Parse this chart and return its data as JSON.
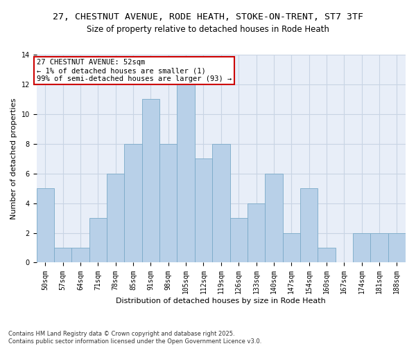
{
  "title_line1": "27, CHESTNUT AVENUE, RODE HEATH, STOKE-ON-TRENT, ST7 3TF",
  "title_line2": "Size of property relative to detached houses in Rode Heath",
  "xlabel": "Distribution of detached houses by size in Rode Heath",
  "ylabel": "Number of detached properties",
  "categories": [
    "50sqm",
    "57sqm",
    "64sqm",
    "71sqm",
    "78sqm",
    "85sqm",
    "91sqm",
    "98sqm",
    "105sqm",
    "112sqm",
    "119sqm",
    "126sqm",
    "133sqm",
    "140sqm",
    "147sqm",
    "154sqm",
    "160sqm",
    "167sqm",
    "174sqm",
    "181sqm",
    "188sqm"
  ],
  "values": [
    5,
    1,
    1,
    3,
    6,
    8,
    11,
    8,
    12,
    7,
    8,
    3,
    4,
    6,
    2,
    5,
    1,
    0,
    2,
    2,
    2
  ],
  "bar_color": "#b8d0e8",
  "bar_edge_color": "#7aaac8",
  "ylim": [
    0,
    14
  ],
  "yticks": [
    0,
    2,
    4,
    6,
    8,
    10,
    12,
    14
  ],
  "grid_color": "#c8d4e4",
  "background_color": "#e8eef8",
  "annotation_text": "27 CHESTNUT AVENUE: 52sqm\n← 1% of detached houses are smaller (1)\n99% of semi-detached houses are larger (93) →",
  "annotation_box_color": "#ffffff",
  "annotation_edge_color": "#cc0000",
  "footnote": "Contains HM Land Registry data © Crown copyright and database right 2025.\nContains public sector information licensed under the Open Government Licence v3.0.",
  "title_fontsize": 9.5,
  "subtitle_fontsize": 8.5,
  "xlabel_fontsize": 8,
  "ylabel_fontsize": 8,
  "tick_fontsize": 7,
  "annotation_fontsize": 7.5,
  "footnote_fontsize": 6
}
